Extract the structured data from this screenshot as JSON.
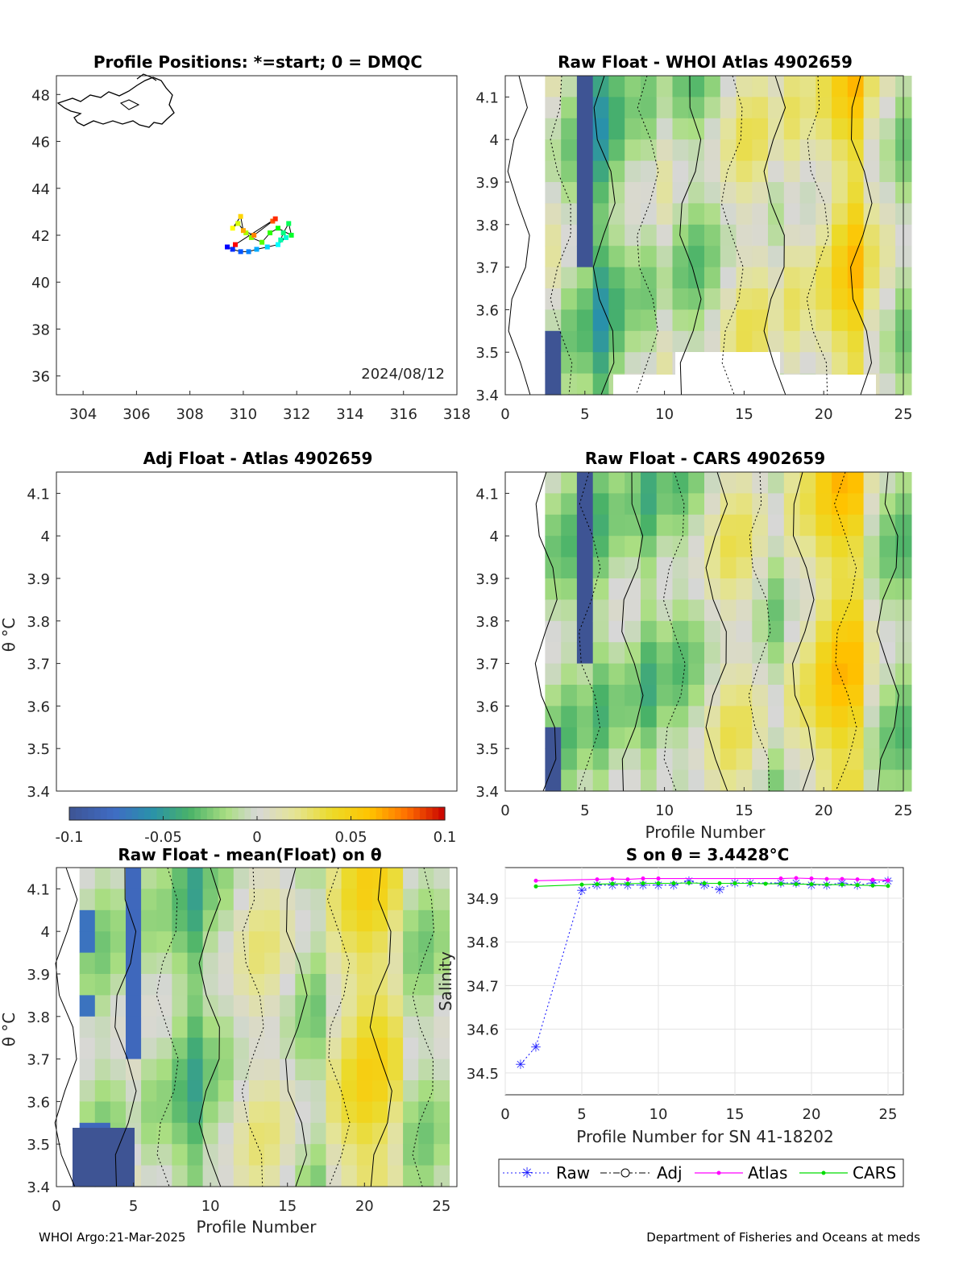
{
  "footer": {
    "left": "WHOI Argo:21-Mar-2025",
    "right": "Department of Fisheries and Oceans at meds"
  },
  "colors": {
    "raw": "#1f1fff",
    "atlas": "#ff00ff",
    "cars": "#00dd00",
    "adj": "#000000"
  },
  "chart_data": [
    {
      "type": "scatter",
      "title": "Profile Positions: *=start; 0 = DMQC",
      "annotation": "2024/08/12",
      "xlabel": "",
      "ylabel": "",
      "xlim": [
        303,
        318
      ],
      "ylim": [
        35.2,
        48.8
      ],
      "xticks": [
        "304",
        "306",
        "308",
        "310",
        "312",
        "314",
        "316",
        "318"
      ],
      "yticks": [
        "36",
        "38",
        "40",
        "42",
        "44",
        "46",
        "48"
      ],
      "profiles": [
        {
          "n": 1,
          "lon": 309.4,
          "lat": 41.5
        },
        {
          "n": 2,
          "lon": 309.6,
          "lat": 41.4
        },
        {
          "n": 3,
          "lon": 309.9,
          "lat": 41.3
        },
        {
          "n": 4,
          "lon": 310.2,
          "lat": 41.3
        },
        {
          "n": 5,
          "lon": 310.5,
          "lat": 41.4
        },
        {
          "n": 6,
          "lon": 310.9,
          "lat": 41.5
        },
        {
          "n": 7,
          "lon": 311.3,
          "lat": 41.6
        },
        {
          "n": 8,
          "lon": 311.6,
          "lat": 41.9
        },
        {
          "n": 9,
          "lon": 311.4,
          "lat": 41.8
        },
        {
          "n": 10,
          "lon": 311.5,
          "lat": 42.1
        },
        {
          "n": 11,
          "lon": 311.7,
          "lat": 42.5
        },
        {
          "n": 12,
          "lon": 311.8,
          "lat": 42.0
        },
        {
          "n": 13,
          "lon": 311.3,
          "lat": 42.3
        },
        {
          "n": 14,
          "lon": 311.0,
          "lat": 42.1
        },
        {
          "n": 15,
          "lon": 310.7,
          "lat": 41.7
        },
        {
          "n": 16,
          "lon": 310.3,
          "lat": 41.9
        },
        {
          "n": 17,
          "lon": 310.1,
          "lat": 42.1
        },
        {
          "n": 18,
          "lon": 309.8,
          "lat": 42.5
        },
        {
          "n": 19,
          "lon": 309.6,
          "lat": 42.3
        },
        {
          "n": 20,
          "lon": 309.9,
          "lat": 42.8
        },
        {
          "n": 21,
          "lon": 310.0,
          "lat": 42.2
        },
        {
          "n": 22,
          "lon": 310.4,
          "lat": 42.0
        },
        {
          "n": 23,
          "lon": 311.1,
          "lat": 42.6
        },
        {
          "n": 24,
          "lon": 311.2,
          "lat": 42.7
        },
        {
          "n": 25,
          "lon": 309.7,
          "lat": 41.6
        }
      ]
    },
    {
      "type": "heatmap",
      "title": "Raw Float - WHOI Atlas  4902659",
      "xlim": [
        0,
        25
      ],
      "ylim": [
        3.4,
        4.15
      ],
      "xticks": [
        "0",
        "5",
        "10",
        "15",
        "20",
        "25"
      ],
      "yticks": [
        "3.4",
        "3.5",
        "3.6",
        "3.7",
        "3.8",
        "3.9",
        "4",
        "4.1"
      ],
      "xlabel": "",
      "ylabel": ""
    },
    {
      "type": "heatmap",
      "title": "Adj Float - Atlas  4902659",
      "xlim": [
        0,
        25
      ],
      "ylim": [
        3.4,
        4.15
      ],
      "yticks": [
        "3.4",
        "3.5",
        "3.6",
        "3.7",
        "3.8",
        "3.9",
        "4",
        "4.1"
      ],
      "xlabel": "",
      "ylabel": "θ °C"
    },
    {
      "type": "heatmap",
      "title": "Raw Float - CARS  4902659",
      "xlim": [
        0,
        25
      ],
      "ylim": [
        3.4,
        4.15
      ],
      "xticks": [
        "0",
        "5",
        "10",
        "15",
        "20",
        "25"
      ],
      "yticks": [
        "3.4",
        "3.5",
        "3.6",
        "3.7",
        "3.8",
        "3.9",
        "4",
        "4.1"
      ],
      "xlabel": "Profile Number",
      "ylabel": ""
    },
    {
      "type": "colorbar",
      "ticks": [
        "-0.1",
        "-0.05",
        "0",
        "0.05",
        "0.1"
      ],
      "range": [
        -0.1,
        0.1
      ]
    },
    {
      "type": "heatmap",
      "title": "Raw Float - mean(Float) on θ",
      "xlim": [
        0,
        26
      ],
      "ylim": [
        3.4,
        4.15
      ],
      "xticks": [
        "0",
        "5",
        "10",
        "15",
        "20",
        "25"
      ],
      "yticks": [
        "3.4",
        "3.5",
        "3.6",
        "3.7",
        "3.8",
        "3.9",
        "4",
        "4.1"
      ],
      "xlabel": "Profile Number",
      "ylabel": "θ °C"
    },
    {
      "type": "line",
      "title": "S on θ = 3.4428°C",
      "xlabel": "Profile Number for SN 41-18202",
      "ylabel": "Salinity",
      "xlim": [
        0,
        26
      ],
      "ylim": [
        34.45,
        34.97
      ],
      "grid": true,
      "xticks": [
        "0",
        "5",
        "10",
        "15",
        "20",
        "25"
      ],
      "yticks": [
        "34.5",
        "34.6",
        "34.7",
        "34.8",
        "34.9"
      ],
      "legend_position": "below",
      "legend": [
        "Raw",
        "Adj",
        "Atlas",
        "CARS"
      ],
      "series": [
        {
          "name": "Raw",
          "style": "dotted-asterisk",
          "x": [
            1,
            2,
            5,
            6,
            7,
            8,
            9,
            10,
            11,
            12,
            13,
            14,
            15,
            16,
            18,
            19,
            20,
            21,
            22,
            23,
            24,
            25
          ],
          "y": [
            34.52,
            34.56,
            34.918,
            34.93,
            34.93,
            34.93,
            34.93,
            34.93,
            34.93,
            34.94,
            34.93,
            34.92,
            34.935,
            34.935,
            34.935,
            34.935,
            34.93,
            34.93,
            34.935,
            34.93,
            34.935,
            34.94
          ]
        },
        {
          "name": "Atlas",
          "style": "solid-dot",
          "x": [
            2,
            6,
            7,
            8,
            9,
            10,
            18,
            19,
            20,
            21,
            22,
            23,
            24,
            25
          ],
          "y": [
            34.94,
            34.943,
            34.944,
            34.943,
            34.945,
            34.945,
            34.945,
            34.946,
            34.945,
            34.944,
            34.944,
            34.943,
            34.942,
            34.941
          ]
        },
        {
          "name": "CARS",
          "style": "solid-dot",
          "x": [
            2,
            5,
            6,
            7,
            8,
            9,
            10,
            11,
            12,
            13,
            14,
            15,
            16,
            17,
            18,
            19,
            20,
            21,
            22,
            23,
            24,
            25
          ],
          "y": [
            34.927,
            34.931,
            34.932,
            34.933,
            34.933,
            34.934,
            34.934,
            34.934,
            34.935,
            34.934,
            34.934,
            34.934,
            34.934,
            34.933,
            34.933,
            34.932,
            34.932,
            34.931,
            34.931,
            34.93,
            34.929,
            34.928
          ]
        }
      ]
    }
  ]
}
